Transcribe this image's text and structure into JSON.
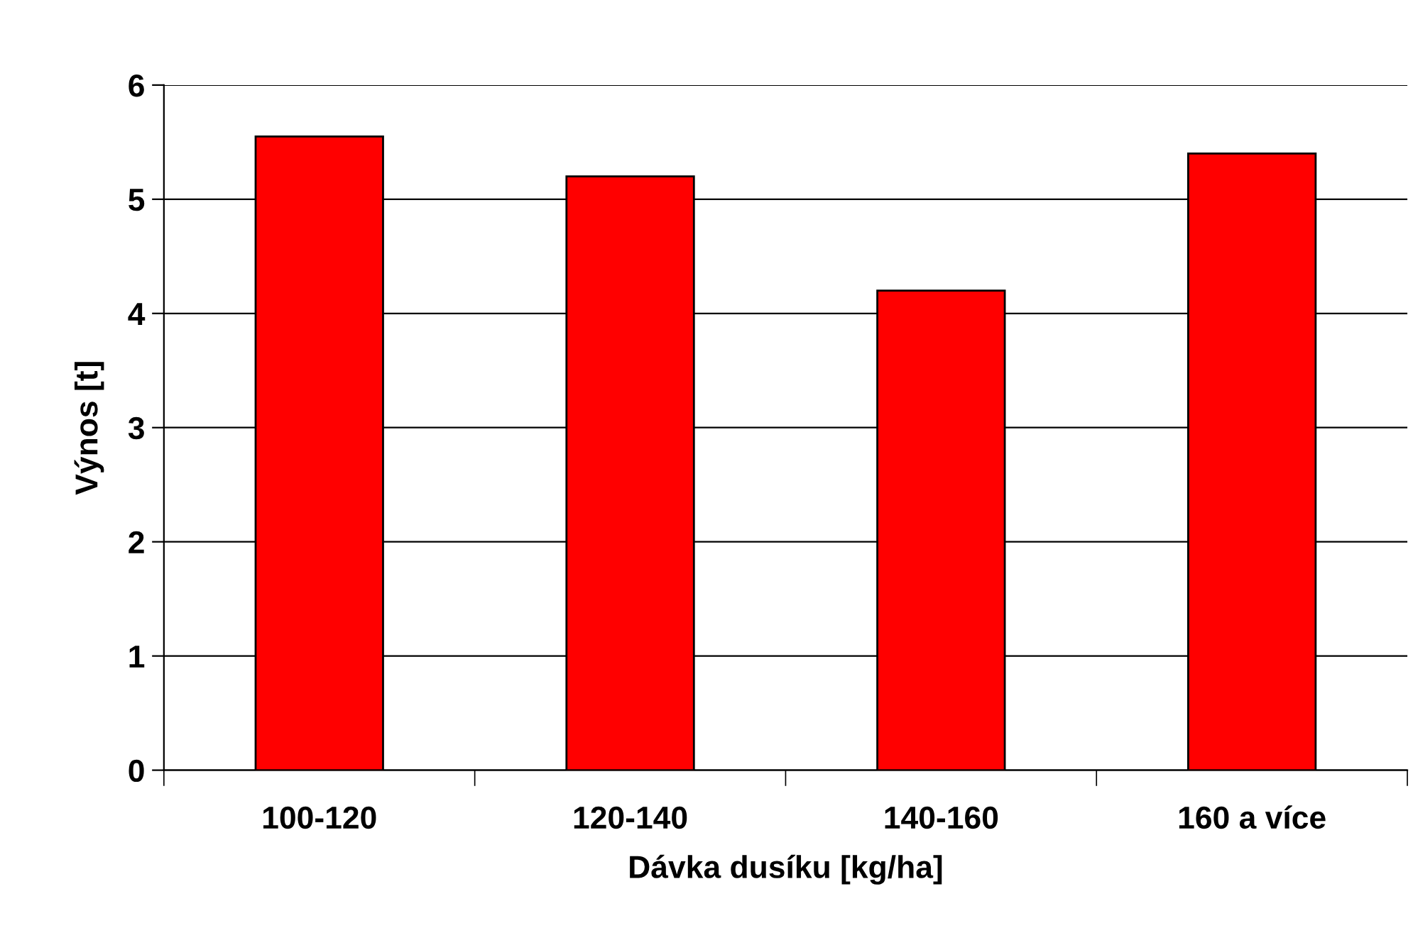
{
  "chart_data": {
    "type": "bar",
    "xlabel": "Dávka dusíku [kg/ha]",
    "ylabel": "Výnos [t]",
    "categories": [
      "100-120",
      "120-140",
      "140-160",
      "160 a více"
    ],
    "values": [
      5.55,
      5.2,
      4.2,
      5.4
    ],
    "color": "#ff0000",
    "ylim": [
      0,
      6
    ],
    "yticks": [
      0,
      1,
      2,
      3,
      4,
      5,
      6
    ],
    "grid": "y"
  }
}
